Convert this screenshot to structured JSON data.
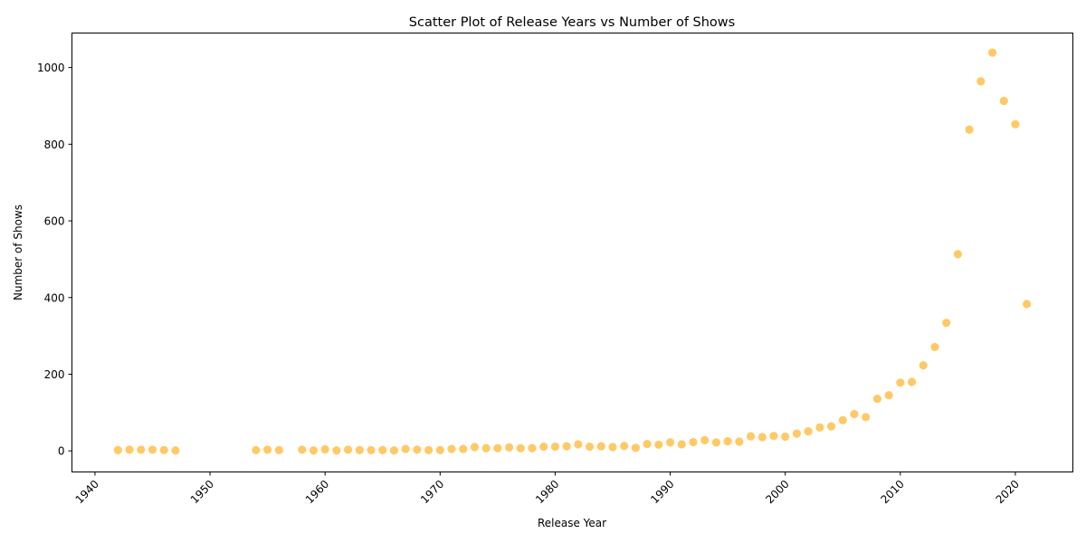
{
  "chart_data": {
    "type": "scatter",
    "title": "Scatter Plot of Release Years vs Number of Shows",
    "xlabel": "Release Year",
    "ylabel": "Number of Shows",
    "xlim": [
      1938,
      2025
    ],
    "ylim": [
      -55,
      1090
    ],
    "xticks": [
      "1940",
      "1950",
      "1960",
      "1970",
      "1980",
      "1990",
      "2000",
      "2010",
      "2020"
    ],
    "yticks": [
      "0",
      "200",
      "400",
      "600",
      "800",
      "1000"
    ],
    "xtick_rotation": 45,
    "grid": false,
    "legend": "none",
    "marker_color": "#FFA500",
    "marker_alpha": 0.6,
    "points": [
      {
        "x": 1942,
        "y": 2
      },
      {
        "x": 1943,
        "y": 3
      },
      {
        "x": 1944,
        "y": 3
      },
      {
        "x": 1945,
        "y": 3
      },
      {
        "x": 1946,
        "y": 2
      },
      {
        "x": 1947,
        "y": 1
      },
      {
        "x": 1954,
        "y": 2
      },
      {
        "x": 1955,
        "y": 3
      },
      {
        "x": 1956,
        "y": 2
      },
      {
        "x": 1958,
        "y": 3
      },
      {
        "x": 1959,
        "y": 1
      },
      {
        "x": 1960,
        "y": 4
      },
      {
        "x": 1961,
        "y": 1
      },
      {
        "x": 1962,
        "y": 3
      },
      {
        "x": 1963,
        "y": 2
      },
      {
        "x": 1964,
        "y": 2
      },
      {
        "x": 1965,
        "y": 2
      },
      {
        "x": 1966,
        "y": 1
      },
      {
        "x": 1967,
        "y": 5
      },
      {
        "x": 1968,
        "y": 3
      },
      {
        "x": 1969,
        "y": 2
      },
      {
        "x": 1970,
        "y": 2
      },
      {
        "x": 1971,
        "y": 5
      },
      {
        "x": 1972,
        "y": 5
      },
      {
        "x": 1973,
        "y": 10
      },
      {
        "x": 1974,
        "y": 7
      },
      {
        "x": 1975,
        "y": 7
      },
      {
        "x": 1976,
        "y": 9
      },
      {
        "x": 1977,
        "y": 7
      },
      {
        "x": 1978,
        "y": 7
      },
      {
        "x": 1979,
        "y": 11
      },
      {
        "x": 1980,
        "y": 11
      },
      {
        "x": 1981,
        "y": 12
      },
      {
        "x": 1982,
        "y": 17
      },
      {
        "x": 1983,
        "y": 11
      },
      {
        "x": 1984,
        "y": 12
      },
      {
        "x": 1985,
        "y": 10
      },
      {
        "x": 1986,
        "y": 13
      },
      {
        "x": 1987,
        "y": 8
      },
      {
        "x": 1988,
        "y": 18
      },
      {
        "x": 1989,
        "y": 16
      },
      {
        "x": 1990,
        "y": 22
      },
      {
        "x": 1991,
        "y": 17
      },
      {
        "x": 1992,
        "y": 23
      },
      {
        "x": 1993,
        "y": 28
      },
      {
        "x": 1994,
        "y": 22
      },
      {
        "x": 1995,
        "y": 25
      },
      {
        "x": 1996,
        "y": 24
      },
      {
        "x": 1997,
        "y": 38
      },
      {
        "x": 1998,
        "y": 36
      },
      {
        "x": 1999,
        "y": 39
      },
      {
        "x": 2000,
        "y": 37
      },
      {
        "x": 2001,
        "y": 45
      },
      {
        "x": 2002,
        "y": 51
      },
      {
        "x": 2003,
        "y": 61
      },
      {
        "x": 2004,
        "y": 64
      },
      {
        "x": 2005,
        "y": 80
      },
      {
        "x": 2006,
        "y": 96
      },
      {
        "x": 2007,
        "y": 88
      },
      {
        "x": 2008,
        "y": 136
      },
      {
        "x": 2009,
        "y": 145
      },
      {
        "x": 2010,
        "y": 178
      },
      {
        "x": 2011,
        "y": 180
      },
      {
        "x": 2012,
        "y": 223
      },
      {
        "x": 2013,
        "y": 271
      },
      {
        "x": 2014,
        "y": 334
      },
      {
        "x": 2015,
        "y": 513
      },
      {
        "x": 2016,
        "y": 838
      },
      {
        "x": 2017,
        "y": 964
      },
      {
        "x": 2018,
        "y": 1039
      },
      {
        "x": 2019,
        "y": 913
      },
      {
        "x": 2020,
        "y": 852
      },
      {
        "x": 2021,
        "y": 383
      }
    ]
  }
}
